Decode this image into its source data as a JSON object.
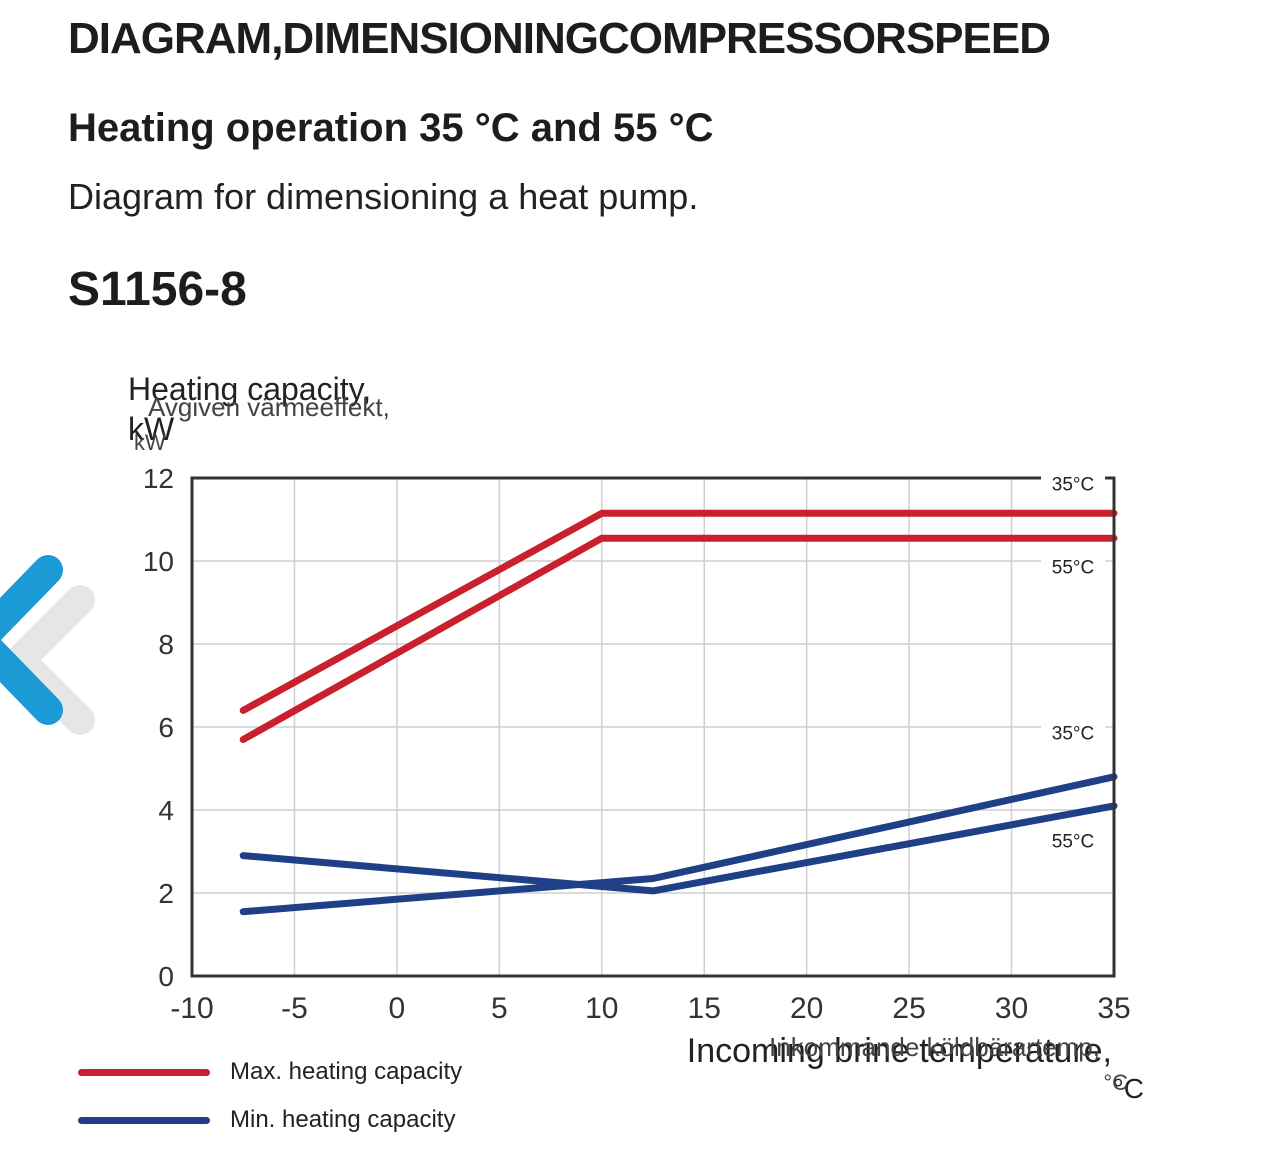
{
  "page": {
    "heading": "DIAGRAM,DIMENSIONINGCOMPRESSORSPEED",
    "subheading": "Heating operation 35 °C and 55 °C",
    "intro": "Diagram for dimensioning a heat pump.",
    "model": "S1156-8"
  },
  "nav": {
    "prev_icon": "chevron-left-icon"
  },
  "colors": {
    "max": "#c8202c",
    "min": "#1f3f86",
    "grid": "#cfcfcf",
    "axis": "#333333"
  },
  "chart_data": {
    "type": "line",
    "ylabel_en": [
      "Heating capacity,",
      "kW"
    ],
    "ylabel_sv": [
      "Avgiven värmeeffekt,",
      "kW"
    ],
    "xlabel_en": [
      "Incoming brine temperature,",
      "°C"
    ],
    "xlabel_sv": [
      "Inkommande köldbärartemp,",
      "°C"
    ],
    "xlim": [
      -10,
      35
    ],
    "ylim": [
      0,
      12
    ],
    "xticks": [
      "-10",
      "-5",
      "0",
      "5",
      "10",
      "15",
      "20",
      "25",
      "30",
      "35"
    ],
    "yticks": [
      "0",
      "2",
      "4",
      "6",
      "8",
      "10",
      "12"
    ],
    "series": [
      {
        "group": "max",
        "label": "35°C",
        "points": [
          [
            -7.5,
            6.4
          ],
          [
            10,
            11.15
          ],
          [
            35,
            11.15
          ]
        ]
      },
      {
        "group": "max",
        "label": "55°C",
        "points": [
          [
            -7.5,
            5.7
          ],
          [
            10,
            10.55
          ],
          [
            35,
            10.55
          ]
        ]
      },
      {
        "group": "min",
        "label": "35°C",
        "points": [
          [
            -7.5,
            1.55
          ],
          [
            12.5,
            2.35
          ],
          [
            35,
            4.8
          ]
        ]
      },
      {
        "group": "min",
        "label": "55°C",
        "points": [
          [
            -7.5,
            2.9
          ],
          [
            12.5,
            2.05
          ],
          [
            35,
            4.1
          ]
        ]
      }
    ],
    "curve_labels": [
      {
        "text": "35°C",
        "x": 33,
        "y": 11.7
      },
      {
        "text": "55°C",
        "x": 33,
        "y": 9.7
      },
      {
        "text": "35°C",
        "x": 33,
        "y": 5.7
      },
      {
        "text": "55°C",
        "x": 33,
        "y": 3.1
      }
    ],
    "legend": [
      {
        "group": "max",
        "label": "Max. heating capacity"
      },
      {
        "group": "min",
        "label": "Min. heating capacity"
      }
    ]
  }
}
